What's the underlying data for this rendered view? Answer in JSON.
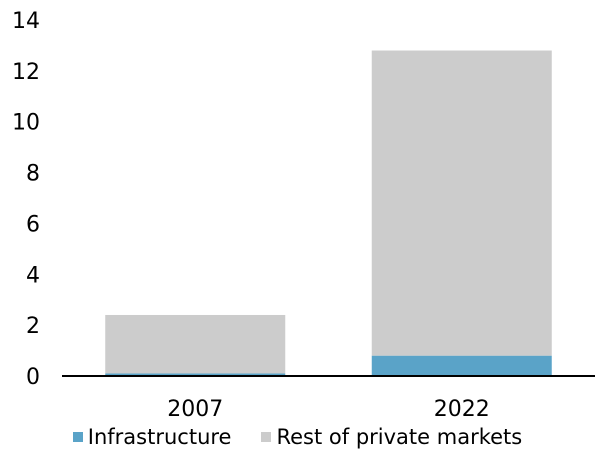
{
  "chart_data": {
    "type": "bar",
    "title": "",
    "xlabel": "",
    "ylabel": "",
    "ylim": [
      0,
      14
    ],
    "yticks": [
      0,
      2,
      4,
      6,
      8,
      10,
      12,
      14
    ],
    "categories": [
      "2007",
      "2022"
    ],
    "series": [
      {
        "name": "Infrastructure",
        "color": "#5aa3c8",
        "values": [
          0.1,
          0.8
        ]
      },
      {
        "name": "Rest of private markets",
        "color": "#cccccc",
        "values": [
          2.3,
          12.0
        ]
      }
    ],
    "stacked": true,
    "grid": false,
    "legend_position": "bottom"
  }
}
